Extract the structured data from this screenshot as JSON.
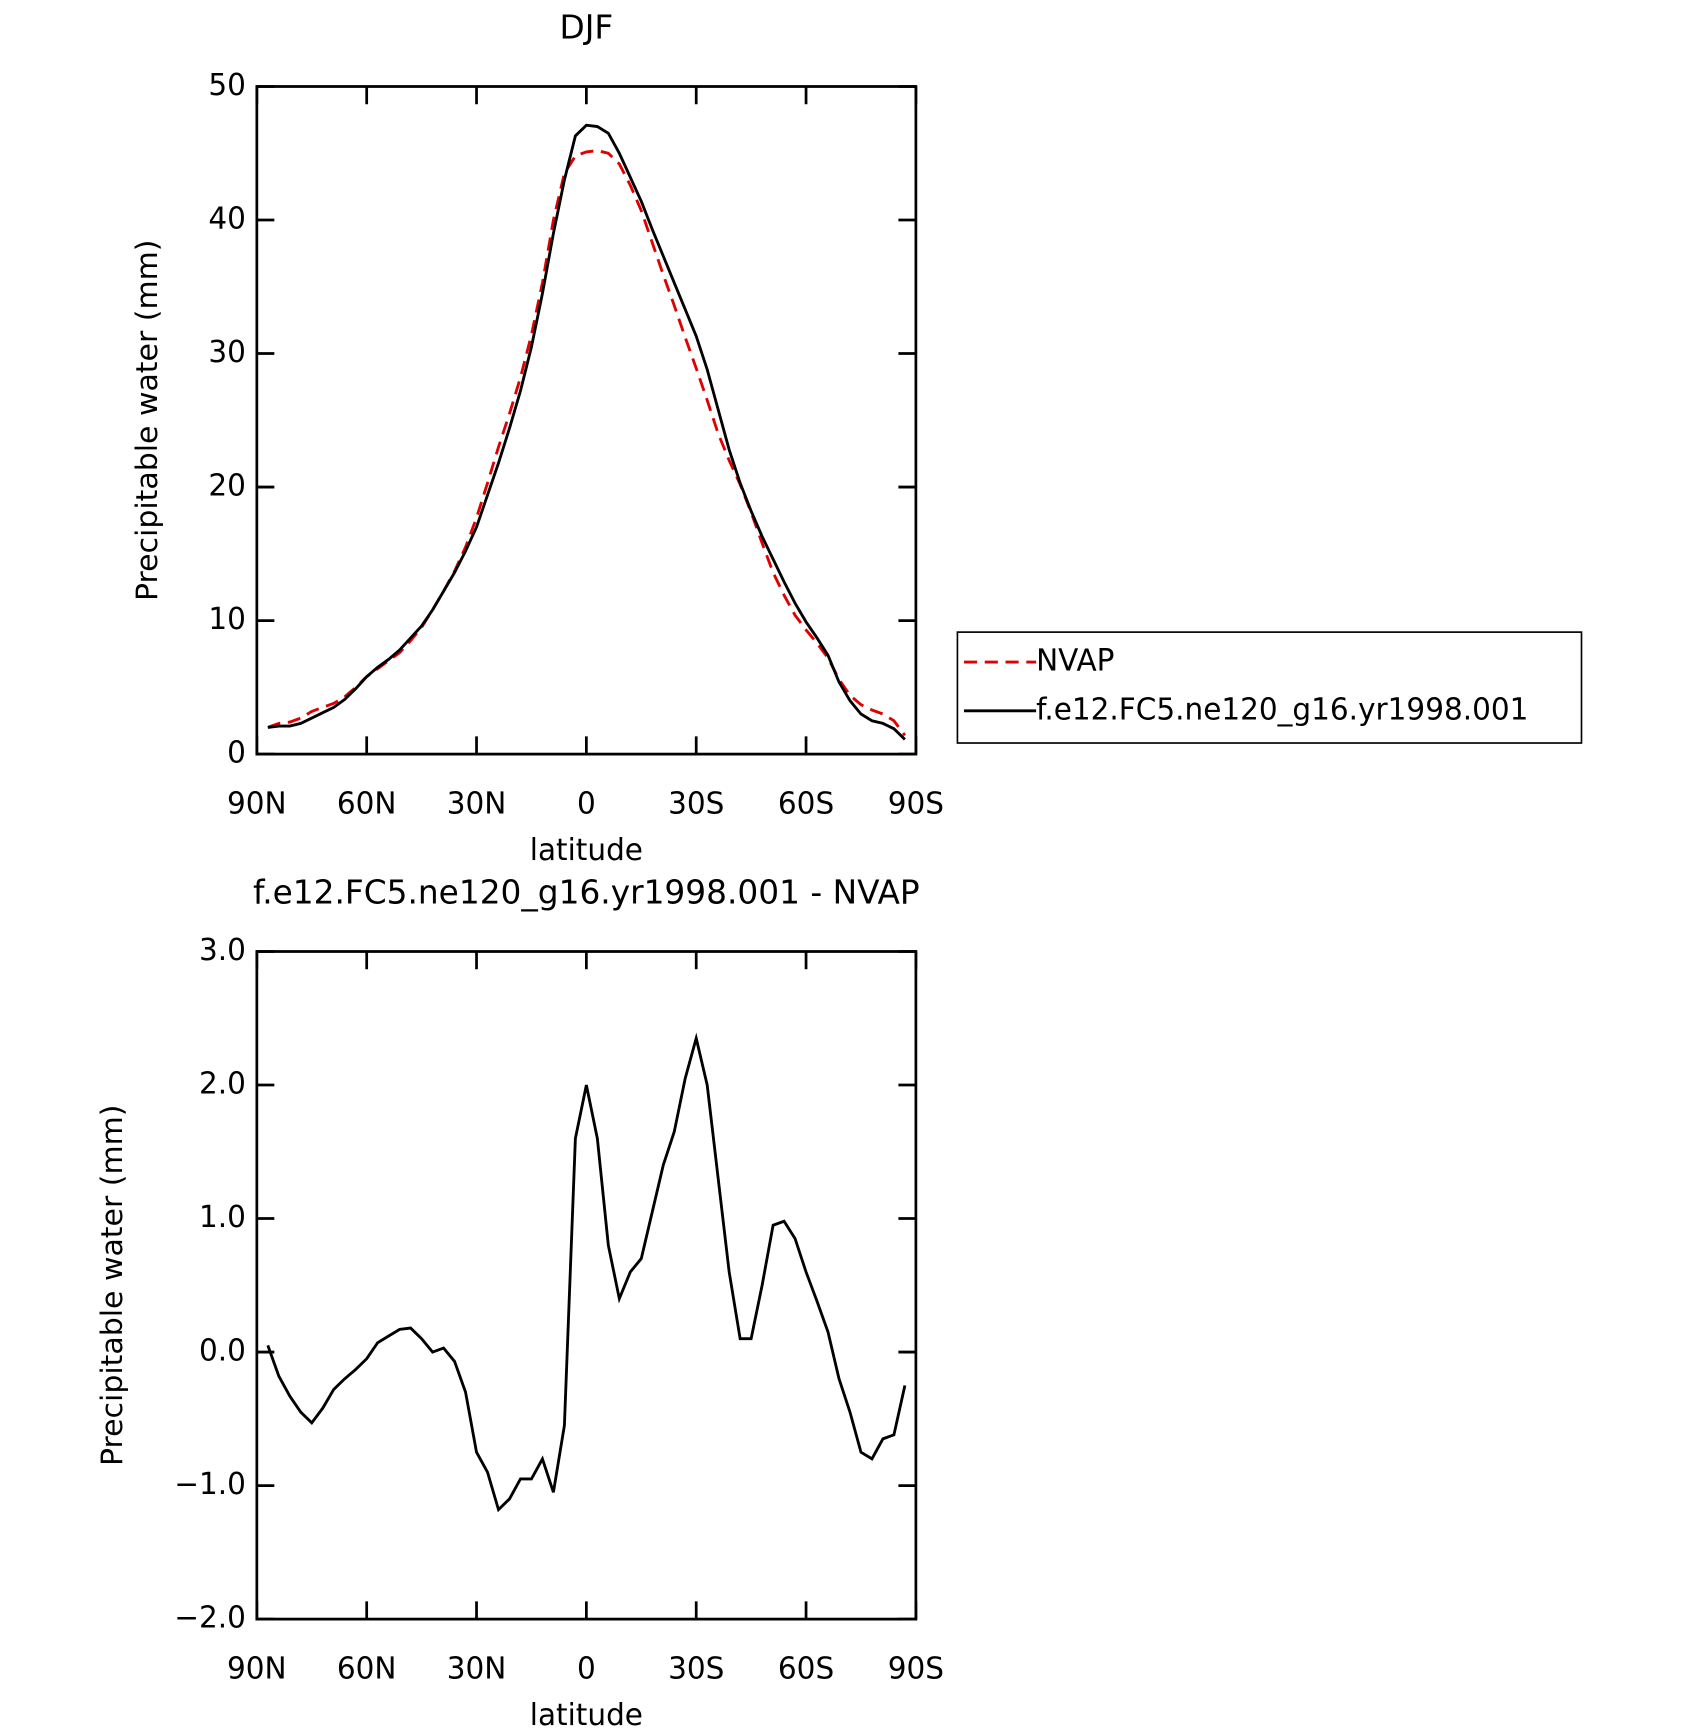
{
  "chart_data": [
    {
      "type": "line",
      "title": "DJF",
      "xlabel": "latitude",
      "ylabel": "Precipitable water (mm)",
      "x": [
        87,
        84,
        81,
        78,
        75,
        72,
        69,
        66,
        63,
        60,
        57,
        54,
        51,
        48,
        45,
        42,
        39,
        36,
        33,
        30,
        27,
        24,
        21,
        18,
        15,
        12,
        9,
        6,
        3,
        0,
        -3,
        -6,
        -9,
        -12,
        -15,
        -18,
        -21,
        -24,
        -27,
        -30,
        -33,
        -36,
        -39,
        -42,
        -45,
        -48,
        -51,
        -54,
        -57,
        -60,
        -63,
        -66,
        -69,
        -72,
        -75,
        -78,
        -81,
        -84,
        -87
      ],
      "xlim": [
        90,
        -90
      ],
      "xticks": [
        {
          "value": 90,
          "label": "90N"
        },
        {
          "value": 60,
          "label": "60N"
        },
        {
          "value": 30,
          "label": "30N"
        },
        0,
        {
          "value": -30,
          "label": "30S"
        },
        {
          "value": -60,
          "label": "60S"
        },
        {
          "value": -90,
          "label": "90S"
        }
      ],
      "ylim": [
        0,
        50
      ],
      "yticks": [
        0,
        10,
        20,
        30,
        40,
        50
      ],
      "legend": "right",
      "series": [
        {
          "name": "NVAP",
          "color": "#e00000",
          "dash": true,
          "values": [
            2.0,
            2.3,
            2.4,
            2.7,
            3.2,
            3.5,
            3.8,
            4.3,
            5.0,
            5.8,
            6.4,
            7.0,
            7.6,
            8.5,
            9.5,
            10.8,
            12.2,
            13.7,
            15.5,
            17.7,
            20.3,
            23.0,
            25.5,
            28.2,
            31.4,
            35.3,
            40.0,
            43.5,
            44.8,
            45.1,
            45.2,
            45.0,
            44.2,
            42.6,
            40.7,
            38.3,
            35.9,
            33.6,
            31.2,
            28.9,
            26.5,
            24.0,
            22.0,
            20.2,
            18.1,
            15.8,
            13.6,
            11.9,
            10.4,
            9.3,
            8.3,
            7.2,
            5.6,
            4.4,
            3.7,
            3.3,
            3.0,
            2.5,
            1.4
          ]
        },
        {
          "name": "f.e12.FC5.ne120_g16.yr1998.001",
          "color": "#000000",
          "dash": false,
          "values": [
            2.0,
            2.1,
            2.1,
            2.3,
            2.7,
            3.1,
            3.5,
            4.1,
            4.9,
            5.8,
            6.5,
            7.1,
            7.8,
            8.7,
            9.6,
            10.8,
            12.2,
            13.6,
            15.2,
            17.0,
            19.4,
            21.8,
            24.4,
            27.2,
            30.5,
            34.5,
            39.0,
            43.0,
            46.3,
            47.1,
            47.0,
            46.5,
            45.0,
            43.2,
            41.4,
            39.3,
            37.3,
            35.3,
            33.3,
            31.3,
            28.8,
            25.8,
            22.8,
            20.3,
            18.2,
            16.3,
            14.6,
            12.9,
            11.3,
            9.9,
            8.7,
            7.4,
            5.4,
            4.0,
            3.0,
            2.5,
            2.3,
            1.9,
            1.1
          ]
        }
      ]
    },
    {
      "type": "line",
      "title": "f.e12.FC5.ne120_g16.yr1998.001 - NVAP",
      "xlabel": "latitude",
      "ylabel": "Precipitable water (mm)",
      "x": [
        87,
        84,
        81,
        78,
        75,
        72,
        69,
        66,
        63,
        60,
        57,
        54,
        51,
        48,
        45,
        42,
        39,
        36,
        33,
        30,
        27,
        24,
        21,
        18,
        15,
        12,
        9,
        6,
        3,
        0,
        -3,
        -6,
        -9,
        -12,
        -15,
        -18,
        -21,
        -24,
        -27,
        -30,
        -33,
        -36,
        -39,
        -42,
        -45,
        -48,
        -51,
        -54,
        -57,
        -60,
        -63,
        -66,
        -69,
        -72,
        -75,
        -78,
        -81,
        -84,
        -87
      ],
      "xlim": [
        90,
        -90
      ],
      "xticks": [
        {
          "value": 90,
          "label": "90N"
        },
        {
          "value": 60,
          "label": "60N"
        },
        {
          "value": 30,
          "label": "30N"
        },
        0,
        {
          "value": -30,
          "label": "30S"
        },
        {
          "value": -60,
          "label": "60S"
        },
        {
          "value": -90,
          "label": "90S"
        }
      ],
      "ylim": [
        -2,
        3
      ],
      "yticks": [
        {
          "value": -2,
          "label": "−2.0"
        },
        {
          "value": -1,
          "label": "−1.0"
        },
        {
          "value": 0,
          "label": "0.0"
        },
        {
          "value": 1,
          "label": "1.0"
        },
        {
          "value": 2,
          "label": "2.0"
        },
        {
          "value": 3,
          "label": "3.0"
        }
      ],
      "series": [
        {
          "color": "#000000",
          "values": [
            0.05,
            -0.18,
            -0.33,
            -0.45,
            -0.53,
            -0.42,
            -0.28,
            -0.2,
            -0.13,
            -0.05,
            0.07,
            0.12,
            0.17,
            0.18,
            0.1,
            0.0,
            0.03,
            -0.07,
            -0.3,
            -0.75,
            -0.9,
            -1.18,
            -1.1,
            -0.95,
            -0.95,
            -0.8,
            -1.05,
            -0.55,
            1.6,
            2.0,
            1.6,
            0.8,
            0.4,
            0.6,
            0.7,
            1.05,
            1.4,
            1.65,
            2.05,
            2.35,
            2.0,
            1.3,
            0.6,
            0.1,
            0.1,
            0.5,
            0.95,
            0.98,
            0.85,
            0.6,
            0.38,
            0.15,
            -0.2,
            -0.45,
            -0.75,
            -0.8,
            -0.65,
            -0.62,
            -0.25
          ]
        }
      ]
    }
  ]
}
